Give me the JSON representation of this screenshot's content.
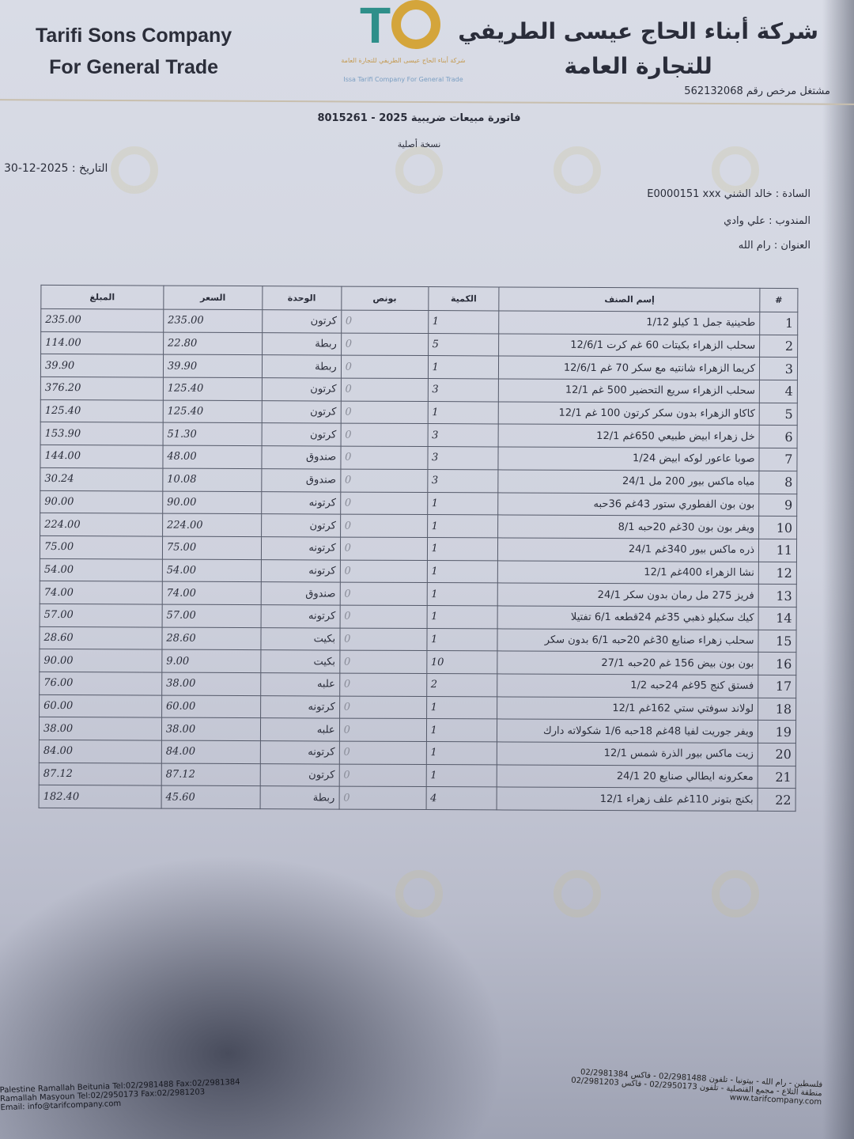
{
  "header": {
    "company_en": [
      "Tarifi Sons Company",
      "For General Trade"
    ],
    "company_ar": [
      "شركة أبناء الحاج عيسى الطريفي",
      "للتجارة العامة"
    ],
    "logo": "TC",
    "logo_caption_ar": "شركة أبناء الحاج عيسى الطريفي للتجارة العامة",
    "logo_caption_en": "Issa Tarifi Company For General Trade",
    "license": "مشتغل مرخص رقم 562132068"
  },
  "invoice": {
    "title": "فاتورة مبيعات ضريبية  2025 - 8015261",
    "subtitle": "نسخة أصلية",
    "date_label": "التاريخ :",
    "date": "2025-12-30"
  },
  "customer": {
    "name_label": "السادة :",
    "name": "خالد الشني E0000151 xxx",
    "rep_label": "المندوب :",
    "rep": "علي وادي",
    "address_label": "العنوان :",
    "address": "رام الله"
  },
  "table": {
    "headers": [
      "#",
      "إسم الصنف",
      "الكمية",
      "بونص",
      "الوحدة",
      "السعر",
      "المبلغ"
    ],
    "rows": [
      [
        "1",
        "طحينية جمل 1 كيلو 1/12",
        "1",
        "0",
        "كرتون",
        "235.00",
        "235.00"
      ],
      [
        "2",
        "سحلب الزهراء بكيتات 60 غم كرت 12/6/1",
        "5",
        "0",
        "ربطة",
        "22.80",
        "114.00"
      ],
      [
        "3",
        "كريما الزهراء شانتيه مع سكر 70 غم 12/6/1",
        "1",
        "0",
        "ربطة",
        "39.90",
        "39.90"
      ],
      [
        "4",
        "سحلب الزهراء سريع التحضير 500 غم 12/1",
        "3",
        "0",
        "كرتون",
        "125.40",
        "376.20"
      ],
      [
        "5",
        "كاكاو الزهراء بدون سكر كرتون 100 غم 12/1",
        "1",
        "0",
        "كرتون",
        "125.40",
        "125.40"
      ],
      [
        "6",
        "خل زهراء ابيض طبيعي 650غم 12/1",
        "3",
        "0",
        "كرتون",
        "51.30",
        "153.90"
      ],
      [
        "7",
        "صوبا عاعور لوكه ابيض 1/24",
        "3",
        "0",
        "صندوق",
        "48.00",
        "144.00"
      ],
      [
        "8",
        "مياه ماكس بيور 200 مل 24/1",
        "3",
        "0",
        "صندوق",
        "10.08",
        "30.24"
      ],
      [
        "9",
        "بون بون الفطوري ستور 43غم 36حبه",
        "1",
        "0",
        "كرتونه",
        "90.00",
        "90.00"
      ],
      [
        "10",
        "ويفر بون بون 30غم 20حبه 8/1",
        "1",
        "0",
        "كرتون",
        "224.00",
        "224.00"
      ],
      [
        "11",
        "ذره ماكس بيور 340غم 24/1",
        "1",
        "0",
        "كرتونه",
        "75.00",
        "75.00"
      ],
      [
        "12",
        "نشا الزهراء 400غم 12/1",
        "1",
        "0",
        "كرتونه",
        "54.00",
        "54.00"
      ],
      [
        "13",
        "فريز 275 مل رمان بدون سكر 24/1",
        "1",
        "0",
        "صندوق",
        "74.00",
        "74.00"
      ],
      [
        "14",
        "كيك سكيلو ذهبي 35غم 24قطعه 6/1 تفتيلا",
        "1",
        "0",
        "كرتونه",
        "57.00",
        "57.00"
      ],
      [
        "15",
        "سحلب زهراء صنايع 30غم 20حبه 6/1 بدون سكر",
        "1",
        "0",
        "بكيت",
        "28.60",
        "28.60"
      ],
      [
        "16",
        "بون بون بيض 156 غم 20حبه 27/1",
        "10",
        "0",
        "بكيت",
        "9.00",
        "90.00"
      ],
      [
        "17",
        "فستق كنج 95غم 24حبه 1/2",
        "2",
        "0",
        "علبه",
        "38.00",
        "76.00"
      ],
      [
        "18",
        "لولاند سوفتي ستي 162غم 12/1",
        "1",
        "0",
        "كرتونه",
        "60.00",
        "60.00"
      ],
      [
        "19",
        "ويفر جوريت لفيا 48غم 18حبه 1/6 شكولاته دارك",
        "1",
        "0",
        "علبه",
        "38.00",
        "38.00"
      ],
      [
        "20",
        "زيت ماكس بيور الذرة شمس 12/1",
        "1",
        "0",
        "كرتونه",
        "84.00",
        "84.00"
      ],
      [
        "21",
        "معكرونه ايطالي صنايع 20 24/1",
        "1",
        "0",
        "كرتون",
        "87.12",
        "87.12"
      ],
      [
        "22",
        "بكنج بتونر 110غم علف زهراء 12/1",
        "4",
        "0",
        "ربطة",
        "45.60",
        "182.40"
      ]
    ]
  },
  "footer": {
    "ar": [
      "فلسطين - رام الله - بيتونيا - تلفون 02/2981488 - فاكس 02/2981384",
      "منطقة التلاع - مجمع القنصلية - تلفون 02/2950173 - فاكس 02/2981203"
    ],
    "web": "www.tarifcompany.com",
    "en": [
      "Palestine Ramallah Beitunia Tel:02/2981488 Fax:02/2981384",
      "Ramallah Masyoun Tel:02/2950173 Fax:02/2981203",
      "Email: info@tarifcompany.com"
    ]
  }
}
